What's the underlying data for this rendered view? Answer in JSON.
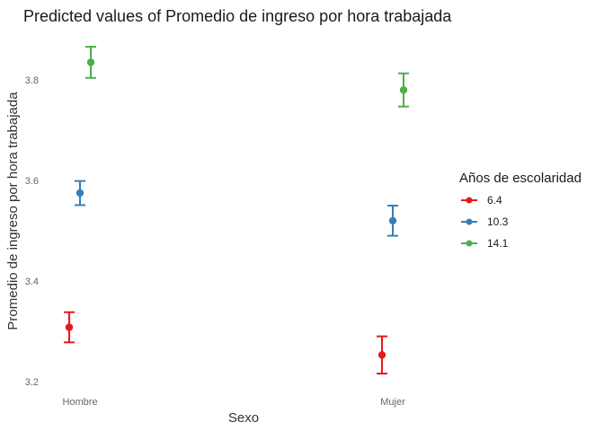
{
  "chart_data": {
    "type": "scatter",
    "title": "Predicted values of Promedio de ingreso por hora trabajada",
    "xlabel": "Sexo",
    "ylabel": "Promedio de ingreso por hora trabajada",
    "categories": [
      "Hombre",
      "Mujer"
    ],
    "ylim": [
      3.18,
      3.9
    ],
    "yticks": [
      3.2,
      3.4,
      3.6,
      3.8
    ],
    "grid": false,
    "legend": {
      "title": "Años de escolaridad",
      "position": "right"
    },
    "series": [
      {
        "name": "6.4",
        "color": "#E41A1C",
        "values": [
          3.308,
          3.253
        ],
        "lower": [
          3.278,
          3.216
        ],
        "upper": [
          3.338,
          3.29
        ]
      },
      {
        "name": "10.3",
        "color": "#377EB8",
        "values": [
          3.575,
          3.52
        ],
        "lower": [
          3.551,
          3.49
        ],
        "upper": [
          3.599,
          3.55
        ]
      },
      {
        "name": "14.1",
        "color": "#4DAF4A",
        "values": [
          3.835,
          3.78
        ],
        "lower": [
          3.804,
          3.747
        ],
        "upper": [
          3.866,
          3.813
        ]
      }
    ]
  }
}
